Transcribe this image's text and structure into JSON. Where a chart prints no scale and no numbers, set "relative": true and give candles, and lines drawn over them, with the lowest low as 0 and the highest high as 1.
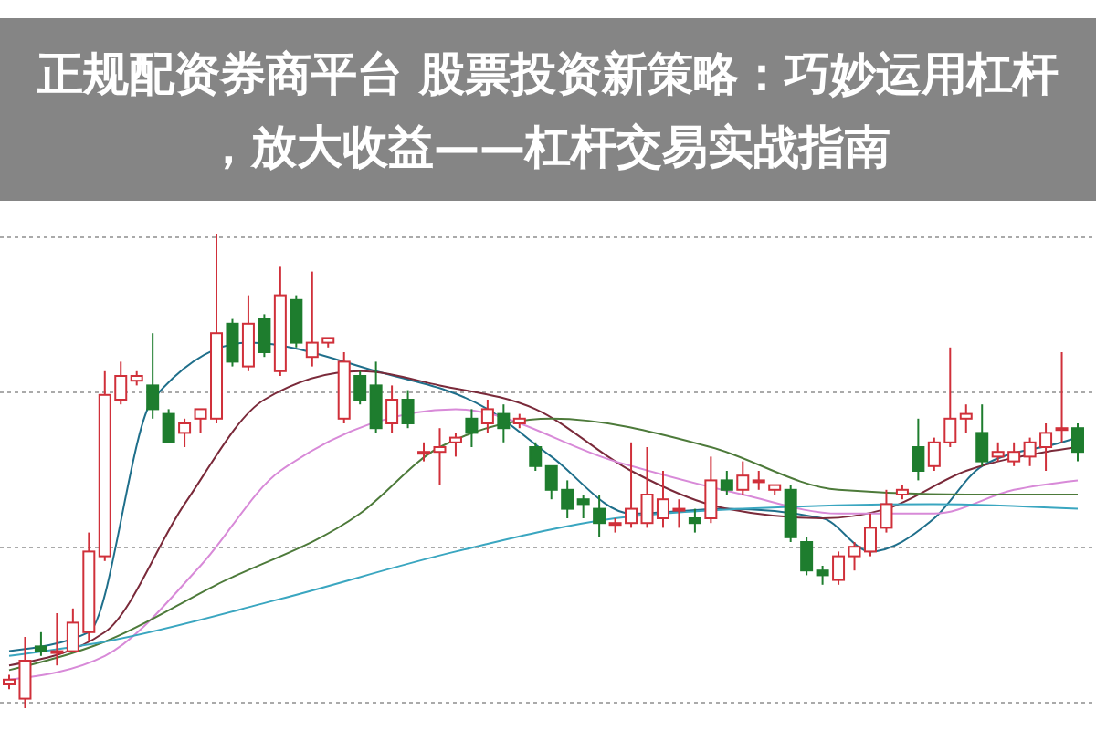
{
  "chart_data": {
    "type": "candlestick",
    "title": "正规配资券商平台 股票投资新策略：巧妙运用杠杆，放大收益——杠杆交易实战指南",
    "relative": true,
    "grid": true,
    "categories": [
      null,
      null,
      null,
      null,
      null,
      null,
      null,
      null,
      null,
      null,
      null,
      null,
      null,
      null,
      null,
      null,
      null,
      null,
      null,
      null,
      null,
      null,
      null,
      null,
      null,
      null,
      null,
      null,
      null,
      null,
      null,
      null,
      null,
      null,
      null,
      null,
      null,
      null,
      null,
      null,
      null,
      null,
      null,
      null,
      null,
      null,
      null,
      null,
      null,
      null,
      null,
      null,
      null,
      null,
      null,
      null,
      null,
      null,
      null,
      null,
      null,
      null,
      null,
      null,
      null,
      null,
      null,
      null
    ],
    "ohlc": [
      [
        0.05,
        0.07,
        0.04,
        0.06
      ],
      [
        0.02,
        0.15,
        0,
        0.1
      ],
      [
        0.13,
        0.16,
        0.11,
        0.12
      ],
      [
        0.12,
        0.2,
        0.09,
        0.12
      ],
      [
        0.12,
        0.21,
        0.12,
        0.18
      ],
      [
        0.16,
        0.37,
        0.14,
        0.33
      ],
      [
        0.32,
        0.71,
        0.31,
        0.66
      ],
      [
        0.65,
        0.73,
        0.64,
        0.7
      ],
      [
        0.69,
        0.71,
        0.68,
        0.7
      ],
      [
        0.68,
        0.79,
        0.61,
        0.63
      ],
      [
        0.62,
        0.63,
        0.56,
        0.56
      ],
      [
        0.58,
        0.61,
        0.55,
        0.6
      ],
      [
        0.61,
        0.63,
        0.58,
        0.63
      ],
      [
        0.61,
        1,
        0.6,
        0.79
      ],
      [
        0.81,
        0.82,
        0.72,
        0.73
      ],
      [
        0.72,
        0.87,
        0.71,
        0.81
      ],
      [
        0.82,
        0.83,
        0.74,
        0.75
      ],
      [
        0.71,
        0.93,
        0.7,
        0.87
      ],
      [
        0.86,
        0.87,
        0.76,
        0.77
      ],
      [
        0.74,
        0.92,
        0.72,
        0.77
      ],
      [
        0.77,
        0.78,
        0.76,
        0.78
      ],
      [
        0.61,
        0.75,
        0.6,
        0.73
      ],
      [
        0.7,
        0.71,
        0.64,
        0.65
      ],
      [
        0.68,
        0.73,
        0.58,
        0.59
      ],
      [
        0.6,
        0.68,
        0.58,
        0.65
      ],
      [
        0.65,
        0.67,
        0.59,
        0.6
      ],
      [
        0.54,
        0.56,
        0.52,
        0.54
      ],
      [
        0.54,
        0.59,
        0.47,
        0.55
      ],
      [
        0.56,
        0.58,
        0.53,
        0.57
      ],
      [
        0.61,
        0.63,
        0.55,
        0.58
      ],
      [
        0.6,
        0.65,
        0.58,
        0.63
      ],
      [
        0.62,
        0.64,
        0.56,
        0.59
      ],
      [
        0.6,
        0.62,
        0.59,
        0.61
      ],
      [
        0.55,
        0.56,
        0.5,
        0.51
      ],
      [
        0.51,
        0.51,
        0.44,
        0.46
      ],
      [
        0.46,
        0.48,
        0.4,
        0.42
      ],
      [
        0.44,
        0.45,
        0.4,
        0.43
      ],
      [
        0.42,
        0.45,
        0.36,
        0.39
      ],
      [
        0.39,
        0.4,
        0.37,
        0.39
      ],
      [
        0.39,
        0.56,
        0.38,
        0.42
      ],
      [
        0.39,
        0.55,
        0.38,
        0.45
      ],
      [
        0.4,
        0.5,
        0.38,
        0.44
      ],
      [
        0.42,
        0.44,
        0.38,
        0.42
      ],
      [
        0.4,
        0.42,
        0.37,
        0.39
      ],
      [
        0.4,
        0.53,
        0.39,
        0.48
      ],
      [
        0.48,
        0.5,
        0.45,
        0.46
      ],
      [
        0.46,
        0.52,
        0.45,
        0.49
      ],
      [
        0.48,
        0.5,
        0.46,
        0.48
      ],
      [
        0.46,
        0.47,
        0.45,
        0.47
      ],
      [
        0.46,
        0.47,
        0.35,
        0.36
      ],
      [
        0.35,
        0.36,
        0.28,
        0.29
      ],
      [
        0.29,
        0.3,
        0.26,
        0.28
      ],
      [
        0.27,
        0.33,
        0.26,
        0.32
      ],
      [
        0.32,
        0.35,
        0.29,
        0.34
      ],
      [
        0.33,
        0.41,
        0.32,
        0.38
      ],
      [
        0.38,
        0.46,
        0.37,
        0.43
      ],
      [
        0.45,
        0.47,
        0.44,
        0.46
      ],
      [
        0.55,
        0.61,
        0.48,
        0.5
      ],
      [
        0.51,
        0.57,
        0.5,
        0.56
      ],
      [
        0.56,
        0.76,
        0.55,
        0.61
      ],
      [
        0.61,
        0.64,
        0.58,
        0.62
      ],
      [
        0.58,
        0.64,
        0.51,
        0.52
      ],
      [
        0.53,
        0.56,
        0.52,
        0.54
      ],
      [
        0.52,
        0.56,
        0.51,
        0.54
      ],
      [
        0.53,
        0.57,
        0.51,
        0.56
      ],
      [
        0.55,
        0.6,
        0.5,
        0.58
      ],
      [
        0.59,
        0.75,
        0.56,
        0.59
      ],
      [
        0.59,
        0.6,
        0.52,
        0.54
      ]
    ],
    "series": [
      {
        "type": "line",
        "color": "#1f6f8b",
        "values": [
          0.12,
          null,
          null,
          null,
          null,
          0.16,
          null,
          null,
          null,
          0.65,
          null,
          null,
          null,
          null,
          null,
          0.77,
          null,
          null,
          null,
          null,
          null,
          null,
          null,
          0.71,
          null,
          null,
          null,
          null,
          null,
          null,
          0.63,
          null,
          null,
          null,
          0.53,
          null,
          null,
          null,
          null,
          0.41,
          null,
          null,
          null,
          null,
          null,
          0.42,
          null,
          null,
          null,
          null,
          null,
          0.4,
          null,
          null,
          0.33,
          null,
          null,
          null,
          0.4,
          null,
          null,
          0.51,
          null,
          null,
          null,
          null,
          0.56,
          0.57
        ]
      },
      {
        "type": "line",
        "color": "#7a2a3a",
        "values": [
          0.09,
          null,
          null,
          null,
          null,
          null,
          0.16,
          null,
          null,
          null,
          null,
          0.43,
          null,
          null,
          null,
          null,
          0.65,
          null,
          null,
          null,
          null,
          null,
          0.71,
          null,
          null,
          null,
          null,
          0.68,
          null,
          null,
          null,
          null,
          null,
          0.63,
          null,
          null,
          null,
          null,
          null,
          0.5,
          null,
          null,
          null,
          null,
          null,
          0.42,
          null,
          null,
          null,
          null,
          null,
          0.4,
          null,
          null,
          null,
          0.42,
          null,
          null,
          null,
          null,
          0.5,
          null,
          null,
          null,
          null,
          0.54,
          null,
          0.55
        ]
      },
      {
        "type": "line",
        "color": "#d88ad8",
        "values": [
          0.06,
          null,
          null,
          null,
          null,
          null,
          0.11,
          null,
          null,
          null,
          null,
          null,
          0.3,
          null,
          null,
          null,
          null,
          0.5,
          null,
          null,
          null,
          null,
          null,
          null,
          null,
          null,
          null,
          null,
          0.63,
          null,
          null,
          null,
          null,
          null,
          null,
          null,
          null,
          null,
          0.52,
          null,
          null,
          null,
          null,
          null,
          null,
          null,
          0.45,
          null,
          null,
          null,
          null,
          null,
          0.41,
          null,
          null,
          null,
          null,
          null,
          0.41,
          null,
          null,
          null,
          null,
          0.46,
          null,
          null,
          null,
          0.48
        ]
      },
      {
        "type": "line",
        "color": "#4d7a3a",
        "values": [
          0.08,
          null,
          null,
          null,
          null,
          null,
          0.14,
          null,
          null,
          null,
          null,
          null,
          null,
          0.26,
          null,
          null,
          null,
          null,
          null,
          null,
          null,
          null,
          0.41,
          null,
          null,
          null,
          null,
          0.55,
          null,
          null,
          null,
          null,
          null,
          null,
          0.61,
          null,
          null,
          null,
          null,
          null,
          null,
          null,
          null,
          null,
          0.55,
          null,
          null,
          null,
          null,
          null,
          null,
          null,
          0.46,
          null,
          null,
          null,
          null,
          null,
          null,
          null,
          0.45,
          null,
          null,
          null,
          null,
          null,
          null,
          0.45
        ]
      },
      {
        "type": "line",
        "color": "#3aa6c0",
        "values": [
          0.11,
          null,
          null,
          null,
          null,
          null,
          0.14,
          null,
          null,
          null,
          null,
          null,
          null,
          null,
          null,
          null,
          null,
          0.23,
          null,
          null,
          null,
          null,
          null,
          null,
          null,
          null,
          null,
          null,
          0.33,
          null,
          null,
          null,
          null,
          null,
          null,
          null,
          null,
          null,
          0.4,
          null,
          null,
          null,
          null,
          null,
          null,
          null,
          0.42,
          null,
          null,
          null,
          null,
          null,
          null,
          null,
          null,
          null,
          null,
          null,
          0.43,
          null,
          null,
          null,
          null,
          null,
          null,
          null,
          null,
          0.42
        ]
      }
    ]
  }
}
